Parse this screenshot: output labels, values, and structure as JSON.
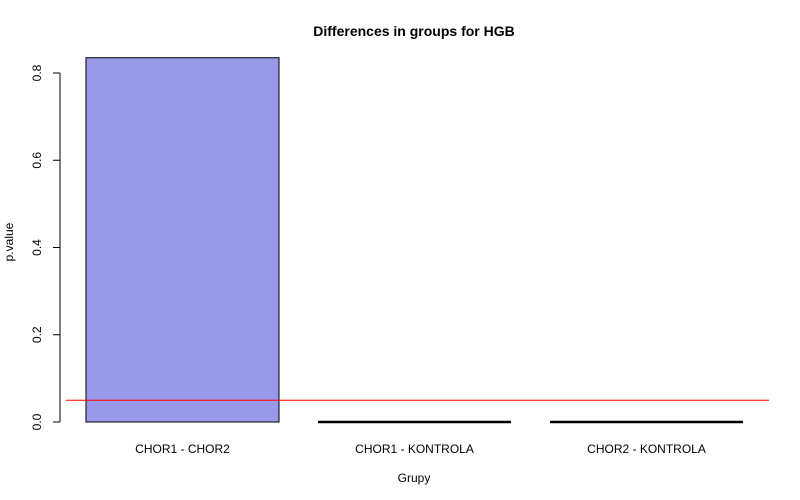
{
  "chart_data": {
    "type": "bar",
    "title": "Differences in groups for  HGB",
    "xlabel": "Grupy",
    "ylabel": "p.value",
    "categories": [
      "CHOR1 - CHOR2",
      "CHOR1 - KONTROLA",
      "CHOR2 - KONTROLA"
    ],
    "values": [
      0.835,
      0.0,
      0.0
    ],
    "ylim": [
      0,
      0.8
    ],
    "yticks": [
      "0.0",
      "0.2",
      "0.4",
      "0.6",
      "0.8"
    ],
    "threshold": 0.05,
    "grid": false,
    "legend": "none",
    "colors": {
      "bar_fill": "#9999EA",
      "bar_stroke": "#000000",
      "threshold_line": "#FF0000",
      "axis": "#000000"
    }
  }
}
